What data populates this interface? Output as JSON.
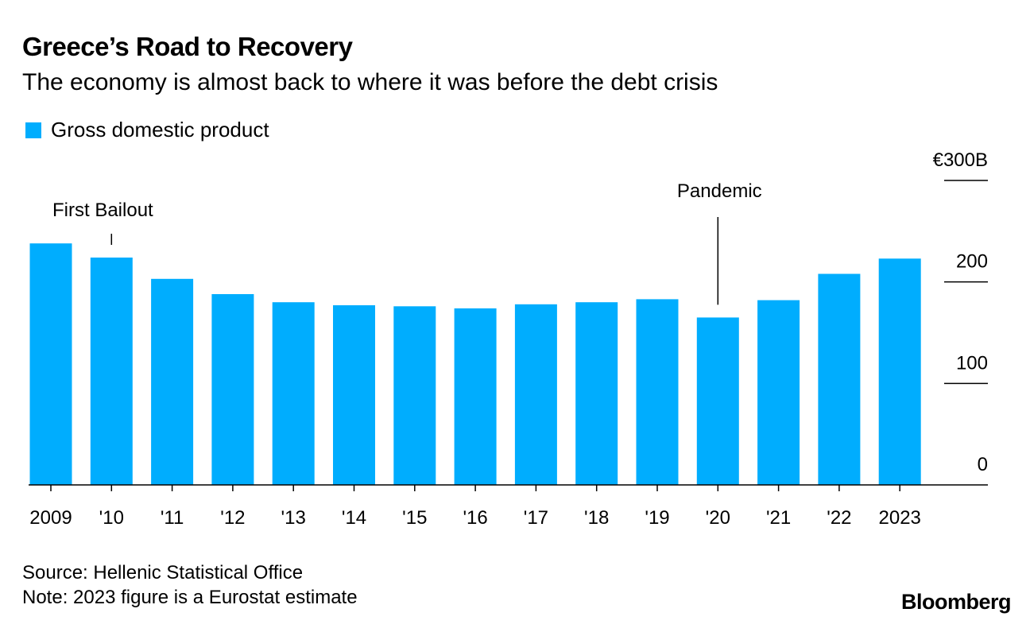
{
  "title": "Greece’s Road to Recovery",
  "subtitle": "The economy is almost back to where it was before the debt crisis",
  "legend_label": "Gross domestic product",
  "source": "Source: Hellenic Statistical Office",
  "note": "Note: 2023 figure is a Eurostat estimate",
  "brand": "Bloomberg",
  "colors": {
    "bar": "#00adfe",
    "axis": "#000000"
  },
  "chart_data": {
    "type": "bar",
    "title": "Greece’s Road to Recovery",
    "subtitle": "The economy is almost back to where it was before the debt crisis",
    "xlabel": "",
    "ylabel": "",
    "ylim": [
      0,
      300
    ],
    "y_unit": "€ billions",
    "yticks": [
      0,
      100,
      200,
      300
    ],
    "ytick_labels": [
      "0",
      "100",
      "200",
      "€300B"
    ],
    "categories": [
      "2009",
      "'10",
      "'11",
      "'12",
      "'13",
      "'14",
      "'15",
      "'16",
      "'17",
      "'18",
      "'19",
      "'20",
      "'21",
      "'22",
      "2023"
    ],
    "series": [
      {
        "name": "Gross domestic product",
        "values": [
          238,
          224,
          203,
          188,
          180,
          177,
          176,
          174,
          178,
          180,
          183,
          165,
          182,
          208,
          223
        ]
      }
    ],
    "annotations": [
      {
        "label": "First Bailout",
        "category_index": 1
      },
      {
        "label": "Pandemic",
        "category_index": 11
      }
    ],
    "legend": "top-left",
    "grid": false
  }
}
